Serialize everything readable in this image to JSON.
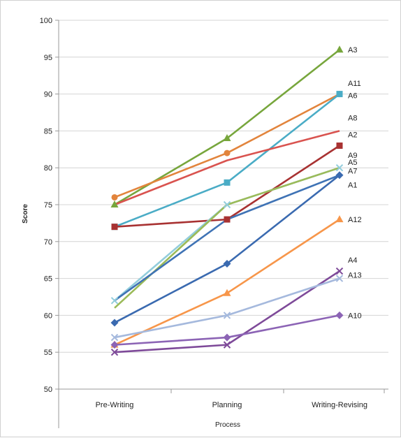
{
  "chart_data": {
    "type": "line",
    "xlabel": "Process",
    "ylabel": "Score",
    "categories": [
      "Pre-Writing",
      "Planning",
      "Writing-Revising"
    ],
    "ylim": [
      50,
      100
    ],
    "yticks": [
      50,
      55,
      60,
      65,
      70,
      75,
      80,
      85,
      90,
      95,
      100
    ],
    "grid": "horizontal",
    "legend": "labels at line ends (right)",
    "series": [
      {
        "name": "A3",
        "values": [
          75,
          84,
          96
        ],
        "color": "#77a63c",
        "marker": "triangle"
      },
      {
        "name": "A11",
        "values": [
          76,
          82,
          90
        ],
        "color": "#e2843c",
        "marker": "circle"
      },
      {
        "name": "A6",
        "values": [
          72,
          78,
          90
        ],
        "color": "#4aacc6",
        "marker": "square"
      },
      {
        "name": "A8",
        "values": [
          75,
          81,
          85
        ],
        "color": "#d9534f",
        "marker": "none"
      },
      {
        "name": "A2",
        "values": [
          72,
          73,
          83
        ],
        "color": "#a83232",
        "marker": "square"
      },
      {
        "name": "A9",
        "values": [
          62,
          75,
          80
        ],
        "color": "#92cddc",
        "marker": "x"
      },
      {
        "name": "A5",
        "values": [
          61,
          75,
          80
        ],
        "color": "#9bbb59",
        "marker": "none"
      },
      {
        "name": "A7",
        "values": [
          62,
          73,
          79
        ],
        "color": "#3f73b5",
        "marker": "none"
      },
      {
        "name": "A1",
        "values": [
          59,
          67,
          79
        ],
        "color": "#3a6ab0",
        "marker": "diamond"
      },
      {
        "name": "A12",
        "values": [
          56,
          63,
          73
        ],
        "color": "#f7964a",
        "marker": "triangle"
      },
      {
        "name": "A4",
        "values": [
          55,
          56,
          66
        ],
        "color": "#7e4a99",
        "marker": "x"
      },
      {
        "name": "A13",
        "values": [
          57,
          60,
          65
        ],
        "color": "#a5b9dd",
        "marker": "x"
      },
      {
        "name": "A10",
        "values": [
          56,
          57,
          60
        ],
        "color": "#8c64b5",
        "marker": "diamond"
      }
    ],
    "end_labels": [
      {
        "text": "A3",
        "value": 96.0
      },
      {
        "text": "A11",
        "value": 91.5
      },
      {
        "text": "A6",
        "value": 89.8
      },
      {
        "text": "A8",
        "value": 86.8
      },
      {
        "text": "A2",
        "value": 84.5
      },
      {
        "text": "A9",
        "value": 81.7
      },
      {
        "text": "A5",
        "value": 80.8
      },
      {
        "text": "A7",
        "value": 79.6
      },
      {
        "text": "A1",
        "value": 77.7
      },
      {
        "text": "A12",
        "value": 73.0
      },
      {
        "text": "A4",
        "value": 67.5
      },
      {
        "text": "A13",
        "value": 65.5
      },
      {
        "text": "A10",
        "value": 60.0
      }
    ]
  }
}
